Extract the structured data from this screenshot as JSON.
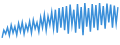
{
  "chart_data": {
    "type": "line",
    "categories": [
      null,
      null,
      null,
      null,
      null,
      null,
      null,
      null,
      null,
      null,
      null,
      null,
      null,
      null,
      null,
      null,
      null,
      null,
      null,
      null,
      null,
      null,
      null,
      null,
      null,
      null,
      null,
      null,
      null,
      null,
      null,
      null,
      null,
      null,
      null,
      null,
      null,
      null,
      null,
      null,
      null,
      null,
      null,
      null,
      null,
      null,
      null,
      null,
      null,
      null,
      null,
      null,
      null,
      null,
      null,
      null,
      null,
      null,
      null,
      null,
      null,
      null,
      null,
      null
    ],
    "values": [
      30,
      45,
      38,
      50,
      35,
      55,
      40,
      52,
      36,
      58,
      42,
      60,
      38,
      56,
      44,
      62,
      40,
      65,
      48,
      60,
      42,
      70,
      50,
      75,
      45,
      72,
      55,
      80,
      48,
      85,
      40,
      88,
      50,
      90,
      45,
      92,
      38,
      95,
      55,
      85,
      40,
      96,
      48,
      90,
      35,
      98,
      52,
      88,
      42,
      96,
      50,
      94,
      45,
      98,
      55,
      92,
      48,
      97,
      60,
      95,
      50,
      93,
      58,
      90
    ],
    "color": "#3a8fd9",
    "ylim": [
      20,
      100
    ],
    "grid": false,
    "tick_labels": false
  }
}
